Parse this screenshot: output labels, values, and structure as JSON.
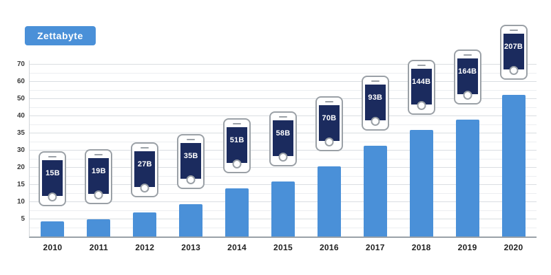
{
  "legend": {
    "label": "Zettabyte",
    "color": "#4a90d8"
  },
  "colors": {
    "bar": "#4a90d8",
    "phone_screen": "#1b2b5e",
    "grid_minor": "#eceef1",
    "grid_major": "#d9dde1",
    "axis": "#99a0a7",
    "text": "#222222"
  },
  "chart_data": {
    "type": "bar",
    "title": "",
    "xlabel": "",
    "ylabel": "",
    "unit": "zettabytes",
    "categories": [
      "2010",
      "2011",
      "2012",
      "2013",
      "2014",
      "2015",
      "2016",
      "2017",
      "2018",
      "2019",
      "2020"
    ],
    "values": [
      4.5,
      5,
      7,
      9.5,
      14,
      16,
      21,
      31.5,
      36,
      39,
      52.5
    ],
    "device_labels": [
      "15B",
      "19B",
      "27B",
      "35B",
      "51B",
      "58B",
      "70B",
      "93B",
      "144B",
      "164B",
      "207B"
    ],
    "y_ticks": [
      5,
      10,
      15,
      20,
      30,
      35,
      40,
      50,
      60,
      70
    ],
    "ylim": [
      0,
      70
    ],
    "grid": true,
    "legend_position": "top-left"
  }
}
